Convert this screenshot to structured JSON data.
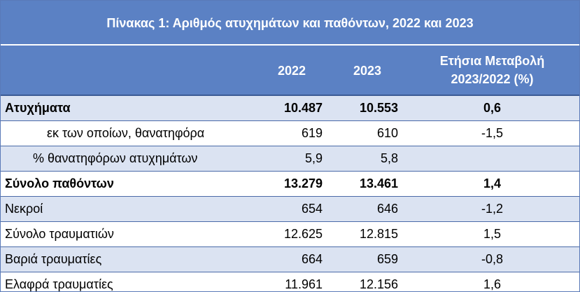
{
  "table": {
    "title": "Πίνακας 1: Αριθμός ατυχημάτων και παθόντων, 2022 και 2023",
    "headers": [
      "",
      "2022",
      "2023",
      "Ετήσια Μεταβολή 2023/2022 (%)"
    ],
    "header_change_line1": "Ετήσια Μεταβολή",
    "header_change_line2": "2023/2022 (%)",
    "rows": [
      {
        "label": "Ατυχήματα",
        "v2022": "10.487",
        "v2023": "10.553",
        "change": "0,6"
      },
      {
        "label": "εκ των οποίων, θανατηφόρα",
        "v2022": "619",
        "v2023": "610",
        "change": "-1,5"
      },
      {
        "label": "% θανατηφόρων ατυχημάτων",
        "v2022": "5,9",
        "v2023": "5,8",
        "change": ""
      },
      {
        "label": "Σύνολο παθόντων",
        "v2022": "13.279",
        "v2023": "13.461",
        "change": "1,4"
      },
      {
        "label": "Νεκροί",
        "v2022": "654",
        "v2023": "646",
        "change": "-1,2"
      },
      {
        "label": "Σύνολο τραυματιών",
        "v2022": "12.625",
        "v2023": "12.815",
        "change": "1,5"
      },
      {
        "label": "Βαριά τραυματίες",
        "v2022": "664",
        "v2023": "659",
        "change": "-0,8"
      },
      {
        "label": "Ελαφρά τραυματίες",
        "v2022": "11.961",
        "v2023": "12.156",
        "change": "1,6"
      }
    ]
  },
  "colors": {
    "header_bg": "#5b81c4",
    "shaded_row": "#dbe3f2",
    "border": "#4a6aa8"
  }
}
